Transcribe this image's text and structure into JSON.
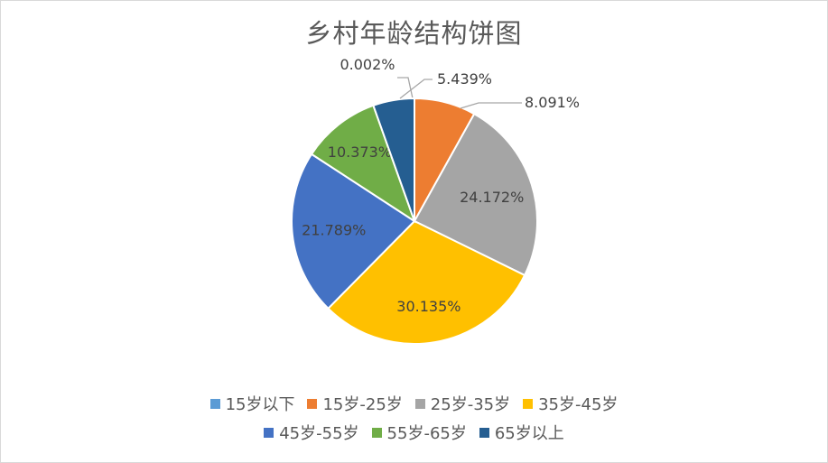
{
  "chart_data": {
    "type": "pie",
    "title": "乡村年龄结构饼图",
    "categories": [
      "15岁以下",
      "15岁-25岁",
      "25岁-35岁",
      "35岁-45岁",
      "45岁-55岁",
      "55岁-65岁",
      "65岁以上"
    ],
    "values": [
      0.002,
      8.091,
      24.172,
      30.135,
      21.789,
      10.373,
      5.439
    ],
    "labels": [
      "0.002%",
      "8.091%",
      "24.172%",
      "30.135%",
      "21.789%",
      "10.373%",
      "5.439%"
    ],
    "colors": [
      "#5b9bd5",
      "#ed7d31",
      "#a5a5a5",
      "#ffc000",
      "#4472c4",
      "#70ad47",
      "#255e91"
    ],
    "legend_position": "bottom"
  },
  "legend": {
    "row1": [
      {
        "label": "15岁以下",
        "color": "#5b9bd5"
      },
      {
        "label": "15岁-25岁",
        "color": "#ed7d31"
      },
      {
        "label": "25岁-35岁",
        "color": "#a5a5a5"
      },
      {
        "label": "35岁-45岁",
        "color": "#ffc000"
      }
    ],
    "row2": [
      {
        "label": "45岁-55岁",
        "color": "#4472c4"
      },
      {
        "label": "55岁-65岁",
        "color": "#70ad47"
      },
      {
        "label": "65岁以上",
        "color": "#255e91"
      }
    ]
  }
}
